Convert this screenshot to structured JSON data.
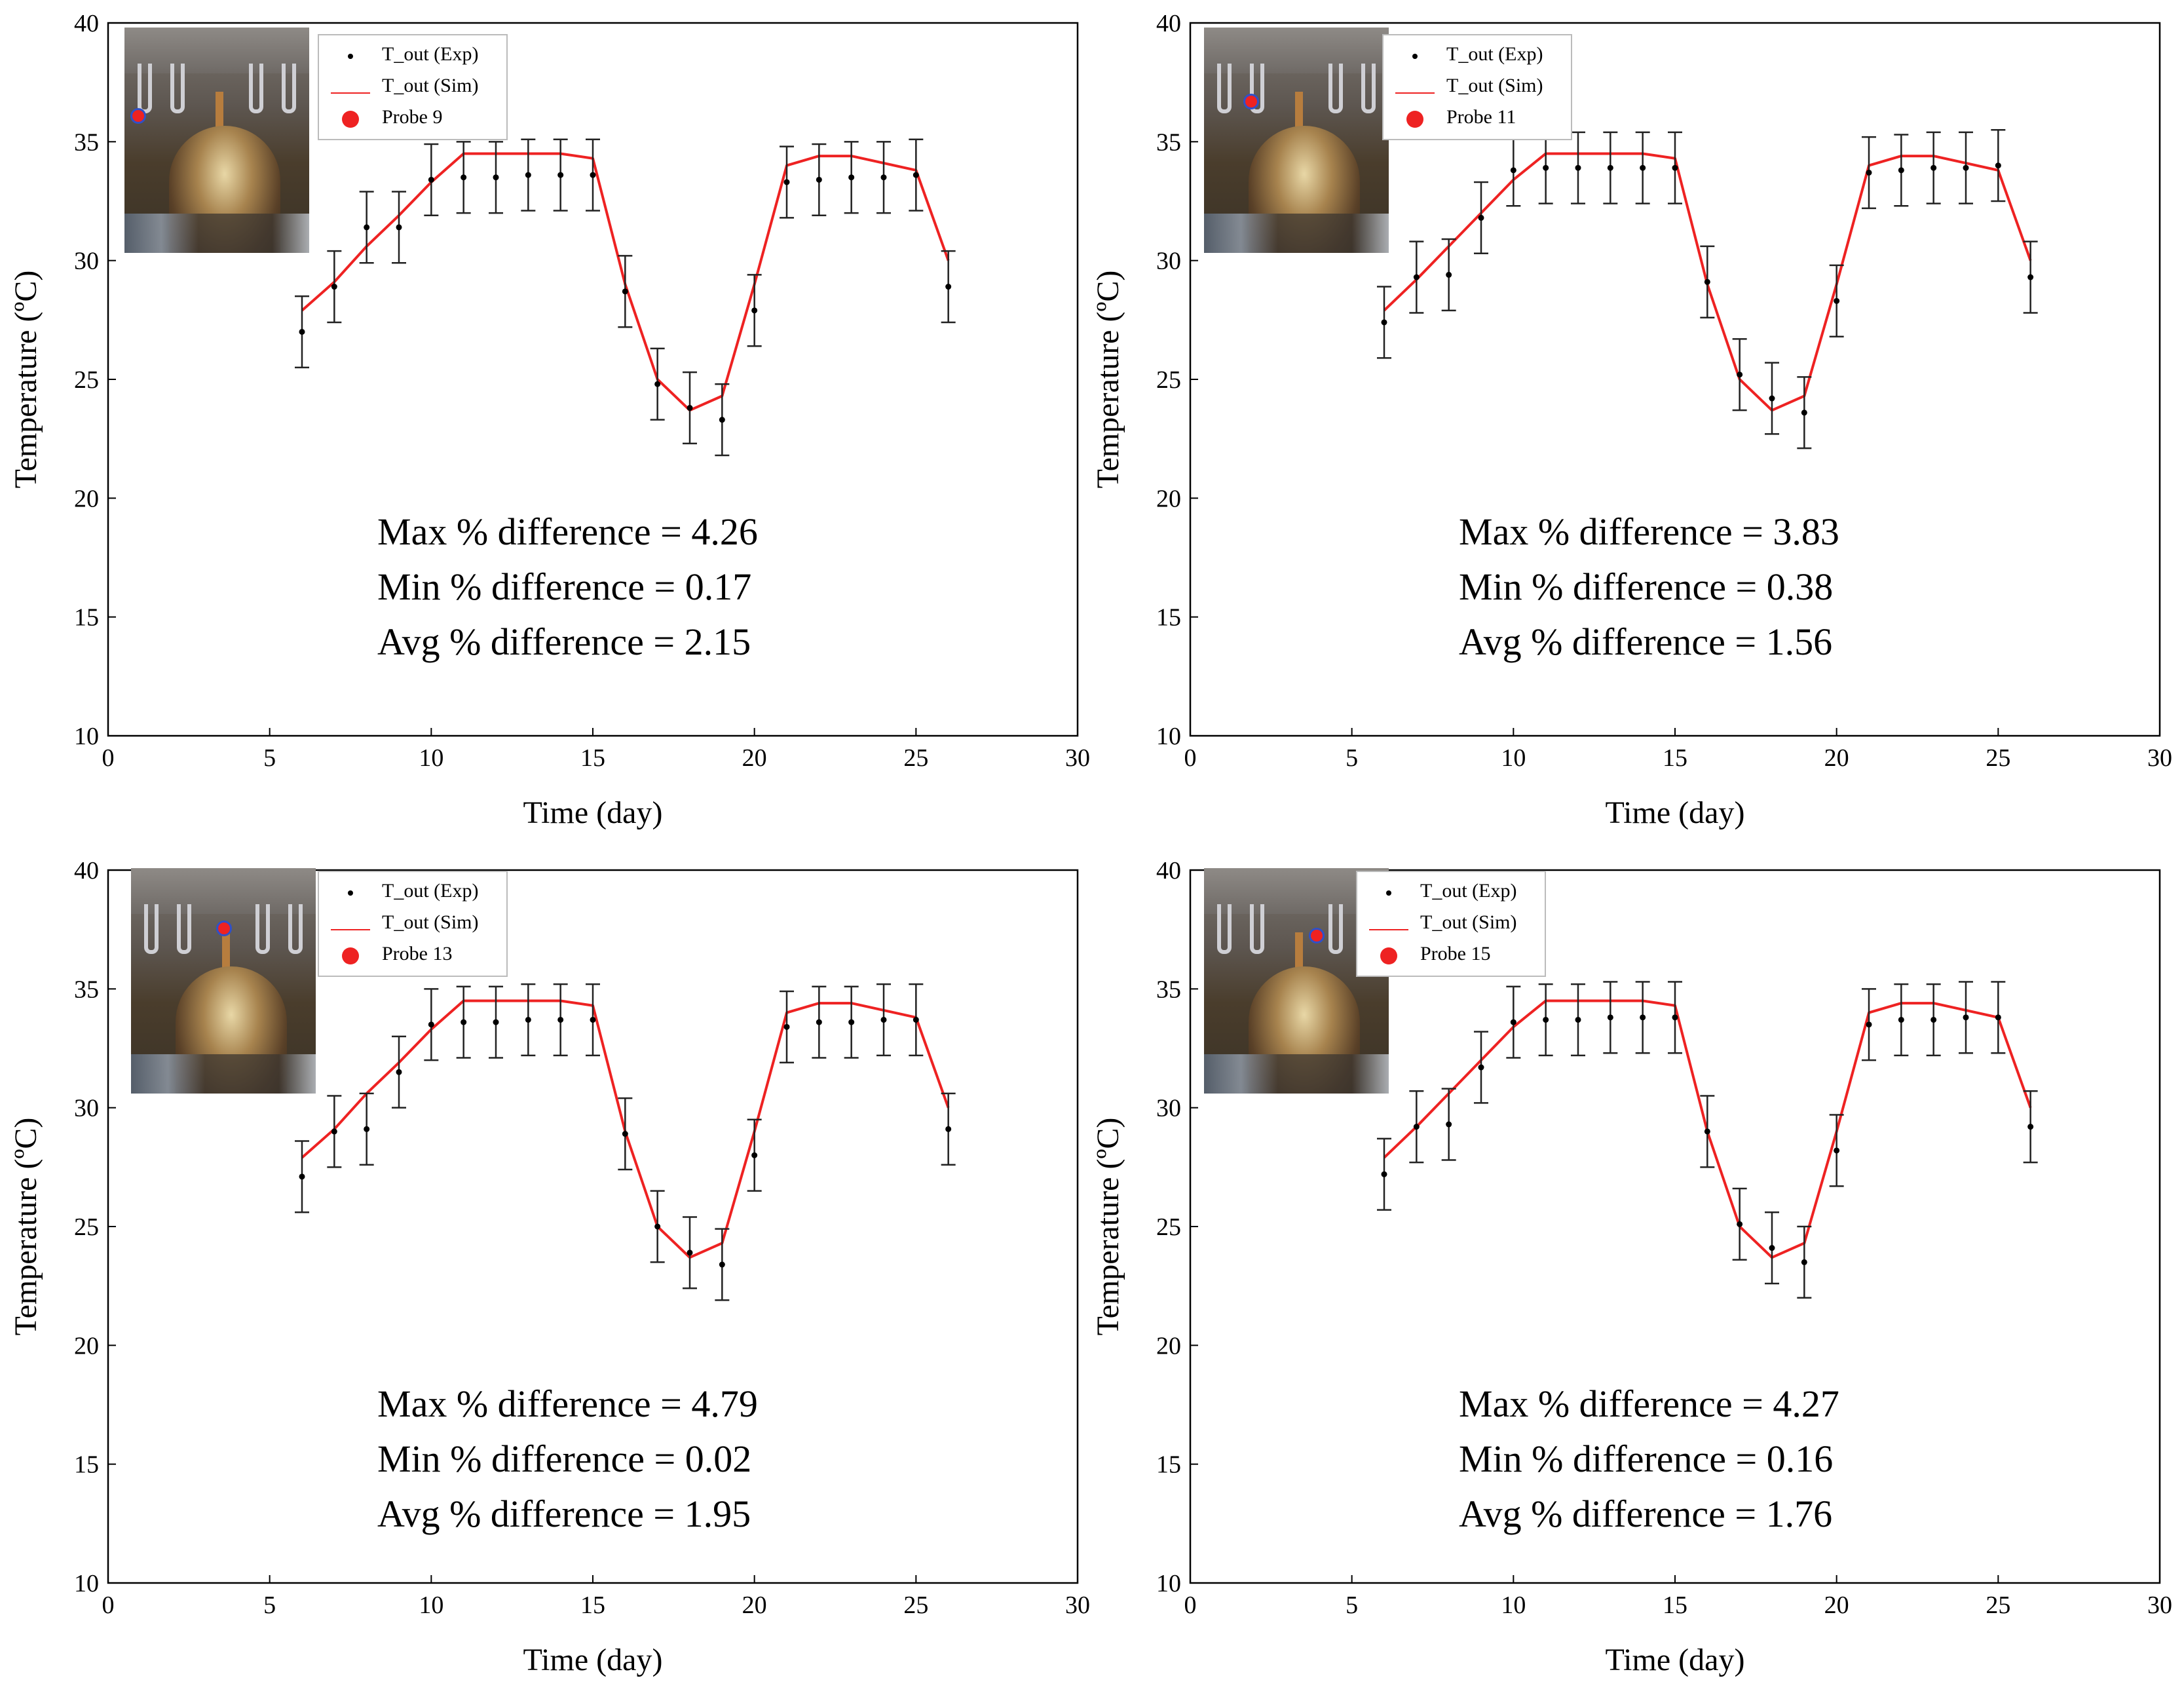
{
  "colors": {
    "sim_line": "#ee2222",
    "exp_point": "#000000",
    "probe_marker": "#ee2222",
    "probe_outline": "#3050c8"
  },
  "chart_data": [
    {
      "type": "line",
      "panel": "top-left",
      "legend_placement": "top-left",
      "xlabel": "Time (day)",
      "ylabel": "Temperature (ºC)",
      "xlim": [
        0,
        30
      ],
      "ylim": [
        10,
        40
      ],
      "xticks": [
        0,
        5,
        10,
        15,
        20,
        25,
        30
      ],
      "yticks": [
        10,
        15,
        20,
        25,
        30,
        35,
        40
      ],
      "legend": {
        "exp": "T_out (Exp)",
        "sim": "T_out (Sim)",
        "probe": "Probe 9"
      },
      "stats": [
        "Max % difference = 4.26",
        "Min % difference = 0.17",
        "Avg % difference = 2.15"
      ],
      "series": [
        {
          "name": "T_out (Exp)",
          "kind": "scatter-errorbar",
          "x": [
            6,
            7,
            8,
            9,
            10,
            11,
            12,
            13,
            14,
            15,
            16,
            17,
            18,
            19,
            20,
            21,
            22,
            23,
            24,
            25,
            26
          ],
          "values": [
            27.0,
            28.9,
            31.4,
            31.4,
            33.4,
            33.5,
            33.5,
            33.6,
            33.6,
            33.6,
            28.7,
            24.8,
            23.8,
            23.3,
            27.9,
            33.3,
            33.4,
            33.5,
            33.5,
            33.6,
            28.9
          ],
          "errors": [
            1.5,
            1.5,
            1.5,
            1.5,
            1.5,
            1.5,
            1.5,
            1.5,
            1.5,
            1.5,
            1.5,
            1.5,
            1.5,
            1.5,
            1.5,
            1.5,
            1.5,
            1.5,
            1.5,
            1.5,
            1.5
          ]
        },
        {
          "name": "T_out (Sim)",
          "kind": "line",
          "x": [
            6,
            7,
            8,
            9,
            10,
            11,
            12,
            13,
            14,
            15,
            16,
            17,
            18,
            19,
            20,
            21,
            22,
            23,
            24,
            25,
            26
          ],
          "values": [
            27.9,
            29.1,
            30.6,
            31.9,
            33.3,
            34.5,
            34.5,
            34.5,
            34.5,
            34.3,
            29.0,
            25.0,
            23.7,
            24.3,
            29.0,
            34.0,
            34.4,
            34.4,
            34.1,
            33.8,
            30.0
          ]
        }
      ]
    },
    {
      "type": "line",
      "panel": "top-right",
      "legend_placement": "top-left",
      "xlabel": "Time (day)",
      "ylabel": "Temperature (ºC)",
      "xlim": [
        0,
        30
      ],
      "ylim": [
        10,
        40
      ],
      "xticks": [
        0,
        5,
        10,
        15,
        20,
        25,
        30
      ],
      "yticks": [
        10,
        15,
        20,
        25,
        30,
        35,
        40
      ],
      "legend": {
        "exp": "T_out (Exp)",
        "sim": "T_out (Sim)",
        "probe": "Probe 11"
      },
      "stats": [
        "Max % difference = 3.83",
        "Min % difference = 0.38",
        "Avg % difference = 1.56"
      ],
      "series": [
        {
          "name": "T_out (Exp)",
          "kind": "scatter-errorbar",
          "x": [
            6,
            7,
            8,
            9,
            10,
            11,
            12,
            13,
            14,
            15,
            16,
            17,
            18,
            19,
            20,
            21,
            22,
            23,
            24,
            25,
            26
          ],
          "values": [
            27.4,
            29.3,
            29.4,
            31.8,
            33.8,
            33.9,
            33.9,
            33.9,
            33.9,
            33.9,
            29.1,
            25.2,
            24.2,
            23.6,
            28.3,
            33.7,
            33.8,
            33.9,
            33.9,
            34.0,
            29.3
          ],
          "errors": [
            1.5,
            1.5,
            1.5,
            1.5,
            1.5,
            1.5,
            1.5,
            1.5,
            1.5,
            1.5,
            1.5,
            1.5,
            1.5,
            1.5,
            1.5,
            1.5,
            1.5,
            1.5,
            1.5,
            1.5,
            1.5
          ]
        },
        {
          "name": "T_out (Sim)",
          "kind": "line",
          "x": [
            6,
            7,
            8,
            9,
            10,
            11,
            12,
            13,
            14,
            15,
            16,
            17,
            18,
            19,
            20,
            21,
            22,
            23,
            24,
            25,
            26
          ],
          "values": [
            27.9,
            29.2,
            30.6,
            32.0,
            33.4,
            34.5,
            34.5,
            34.5,
            34.5,
            34.3,
            29.0,
            25.0,
            23.7,
            24.3,
            29.0,
            34.0,
            34.4,
            34.4,
            34.1,
            33.8,
            30.0
          ]
        }
      ]
    },
    {
      "type": "line",
      "panel": "bottom-left",
      "legend_placement": "top-left",
      "xlabel": "Time (day)",
      "ylabel": "Temperature (ºC)",
      "xlim": [
        0,
        30
      ],
      "ylim": [
        10,
        40
      ],
      "xticks": [
        0,
        5,
        10,
        15,
        20,
        25,
        30
      ],
      "yticks": [
        10,
        15,
        20,
        25,
        30,
        35,
        40
      ],
      "legend": {
        "exp": "T_out (Exp)",
        "sim": "T_out (Sim)",
        "probe": "Probe 13"
      },
      "stats": [
        "Max % difference = 4.79",
        "Min % difference = 0.02",
        "Avg % difference = 1.95"
      ],
      "series": [
        {
          "name": "T_out (Exp)",
          "kind": "scatter-errorbar",
          "x": [
            6,
            7,
            8,
            9,
            10,
            11,
            12,
            13,
            14,
            15,
            16,
            17,
            18,
            19,
            20,
            21,
            22,
            23,
            24,
            25,
            26
          ],
          "values": [
            27.1,
            29.0,
            29.1,
            31.5,
            33.5,
            33.6,
            33.6,
            33.7,
            33.7,
            33.7,
            28.9,
            25.0,
            23.9,
            23.4,
            28.0,
            33.4,
            33.6,
            33.6,
            33.7,
            33.7,
            29.1
          ],
          "errors": [
            1.5,
            1.5,
            1.5,
            1.5,
            1.5,
            1.5,
            1.5,
            1.5,
            1.5,
            1.5,
            1.5,
            1.5,
            1.5,
            1.5,
            1.5,
            1.5,
            1.5,
            1.5,
            1.5,
            1.5,
            1.5
          ]
        },
        {
          "name": "T_out (Sim)",
          "kind": "line",
          "x": [
            6,
            7,
            8,
            9,
            10,
            11,
            12,
            13,
            14,
            15,
            16,
            17,
            18,
            19,
            20,
            21,
            22,
            23,
            24,
            25,
            26
          ],
          "values": [
            27.9,
            29.1,
            30.6,
            31.9,
            33.3,
            34.5,
            34.5,
            34.5,
            34.5,
            34.3,
            29.0,
            25.0,
            23.7,
            24.3,
            29.0,
            34.0,
            34.4,
            34.4,
            34.1,
            33.8,
            30.0
          ]
        }
      ]
    },
    {
      "type": "line",
      "panel": "bottom-right",
      "legend_placement": "top-left",
      "xlabel": "Time (day)",
      "ylabel": "Temperature (ºC)",
      "xlim": [
        0,
        30
      ],
      "ylim": [
        10,
        40
      ],
      "xticks": [
        0,
        5,
        10,
        15,
        20,
        25,
        30
      ],
      "yticks": [
        10,
        15,
        20,
        25,
        30,
        35,
        40
      ],
      "legend": {
        "exp": "T_out (Exp)",
        "sim": "T_out (Sim)",
        "probe": "Probe 15"
      },
      "stats": [
        "Max % difference = 4.27",
        "Min % difference = 0.16",
        "Avg % difference = 1.76"
      ],
      "series": [
        {
          "name": "T_out (Exp)",
          "kind": "scatter-errorbar",
          "x": [
            6,
            7,
            8,
            9,
            10,
            11,
            12,
            13,
            14,
            15,
            16,
            17,
            18,
            19,
            20,
            21,
            22,
            23,
            24,
            25,
            26
          ],
          "values": [
            27.2,
            29.2,
            29.3,
            31.7,
            33.6,
            33.7,
            33.7,
            33.8,
            33.8,
            33.8,
            29.0,
            25.1,
            24.1,
            23.5,
            28.2,
            33.5,
            33.7,
            33.7,
            33.8,
            33.8,
            29.2
          ],
          "errors": [
            1.5,
            1.5,
            1.5,
            1.5,
            1.5,
            1.5,
            1.5,
            1.5,
            1.5,
            1.5,
            1.5,
            1.5,
            1.5,
            1.5,
            1.5,
            1.5,
            1.5,
            1.5,
            1.5,
            1.5,
            1.5
          ]
        },
        {
          "name": "T_out (Sim)",
          "kind": "line",
          "x": [
            6,
            7,
            8,
            9,
            10,
            11,
            12,
            13,
            14,
            15,
            16,
            17,
            18,
            19,
            20,
            21,
            22,
            23,
            24,
            25,
            26
          ],
          "values": [
            27.9,
            29.2,
            30.6,
            32.0,
            33.4,
            34.5,
            34.5,
            34.5,
            34.5,
            34.3,
            29.0,
            25.0,
            23.7,
            24.3,
            29.0,
            34.0,
            34.4,
            34.4,
            34.1,
            33.8,
            30.0
          ]
        }
      ]
    }
  ]
}
